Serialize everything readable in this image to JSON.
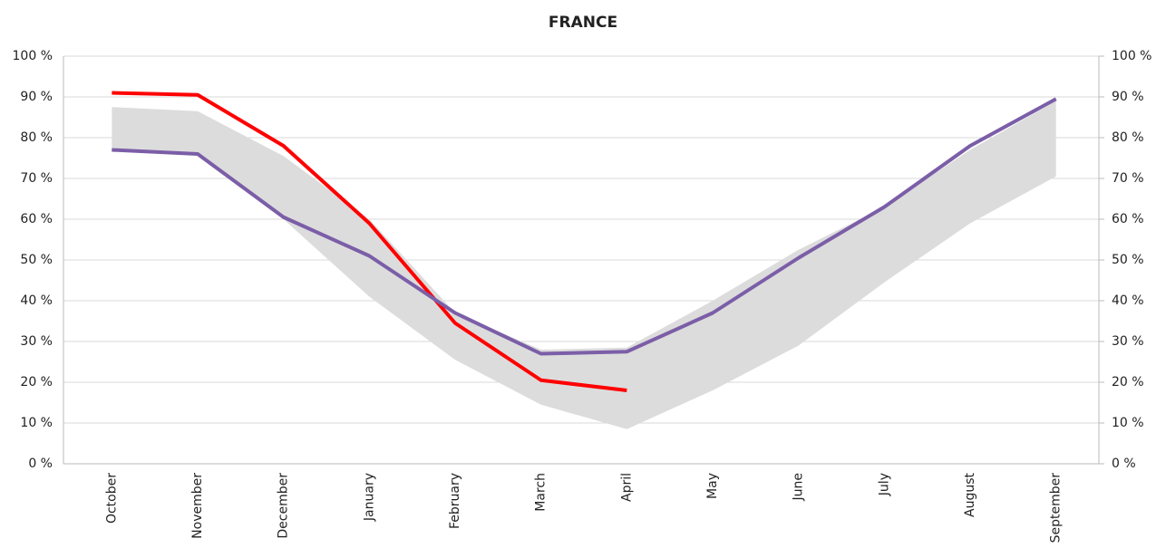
{
  "chart_data": {
    "type": "line",
    "title": "FRANCE",
    "categories": [
      "October",
      "November",
      "December",
      "January",
      "February",
      "March",
      "April",
      "May",
      "June",
      "July",
      "August",
      "September"
    ],
    "band": {
      "color": "#dcdcdd",
      "upper": [
        87.5,
        86.5,
        75.5,
        60,
        37,
        28,
        28.5,
        40,
        52.5,
        63,
        77,
        89
      ],
      "lower": [
        77,
        76,
        60,
        41,
        25.5,
        14.5,
        8.5,
        18,
        29,
        44.5,
        59,
        70.5
      ]
    },
    "series": [
      {
        "color": "#ff0000",
        "values": [
          91,
          90.5,
          78,
          59,
          34.5,
          20.5,
          18,
          null,
          null,
          null,
          null,
          null
        ]
      },
      {
        "color": "#7b5ea7",
        "values": [
          77,
          76,
          60.5,
          51,
          37,
          27,
          27.5,
          37,
          50.5,
          63,
          78,
          89.5
        ]
      }
    ],
    "ylim": [
      0,
      100
    ],
    "yticks": [
      {
        "value": 0,
        "label": "0 %"
      },
      {
        "value": 10,
        "label": "10 %"
      },
      {
        "value": 20,
        "label": "20 %"
      },
      {
        "value": 30,
        "label": "30 %"
      },
      {
        "value": 40,
        "label": "40 %"
      },
      {
        "value": 50,
        "label": "50 %"
      },
      {
        "value": 60,
        "label": "60 %"
      },
      {
        "value": 70,
        "label": "70 %"
      },
      {
        "value": 80,
        "label": "80 %"
      },
      {
        "value": 90,
        "label": "90 %"
      },
      {
        "value": 100,
        "label": "100 %"
      }
    ],
    "y2lim": [
      0,
      100
    ],
    "y2ticks": [
      {
        "value": 0,
        "label": "0 %"
      },
      {
        "value": 10,
        "label": "10 %"
      },
      {
        "value": 20,
        "label": "20 %"
      },
      {
        "value": 30,
        "label": "30 %"
      },
      {
        "value": 40,
        "label": "40 %"
      },
      {
        "value": 50,
        "label": "50 %"
      },
      {
        "value": 60,
        "label": "60 %"
      },
      {
        "value": 70,
        "label": "70 %"
      },
      {
        "value": 80,
        "label": "80 %"
      },
      {
        "value": 90,
        "label": "90 %"
      },
      {
        "value": 100,
        "label": "100 %"
      }
    ],
    "grid": true
  }
}
